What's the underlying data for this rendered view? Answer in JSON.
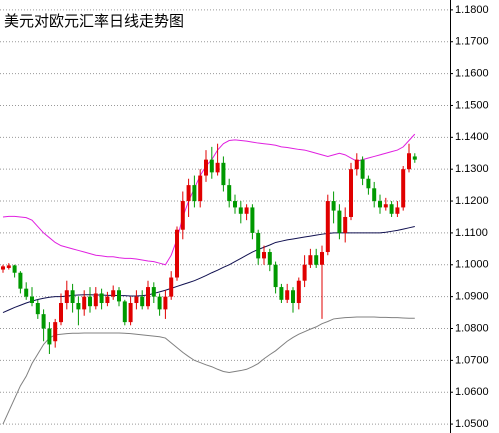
{
  "chart_data": {
    "type": "candlestick",
    "title": "美元对欧元汇率日线走势图",
    "title_color": "#e00000",
    "up_color": "#e00000",
    "down_color": "#009900",
    "grid": true,
    "ylim": [
      1.0472,
      1.1831
    ],
    "yticks": [
      {
        "value": 1.18,
        "label": "1.1800"
      },
      {
        "value": 1.17,
        "label": "1.1700"
      },
      {
        "value": 1.16,
        "label": "1.1600"
      },
      {
        "value": 1.15,
        "label": "1.1500"
      },
      {
        "value": 1.14,
        "label": "1.1400"
      },
      {
        "value": 1.13,
        "label": "1.1300"
      },
      {
        "value": 1.12,
        "label": "1.1200"
      },
      {
        "value": 1.11,
        "label": "1.1100"
      },
      {
        "value": 1.1,
        "label": "1.1000"
      },
      {
        "value": 1.09,
        "label": "1.0900"
      },
      {
        "value": 1.08,
        "label": "1.0800"
      },
      {
        "value": 1.07,
        "label": "1.0700"
      },
      {
        "value": 1.06,
        "label": "1.0600"
      },
      {
        "value": 1.05,
        "label": "1.0500"
      }
    ],
    "open": [
      1.0985,
      1.099,
      1.0998,
      1.0975,
      1.0925,
      1.09,
      1.088,
      1.0845,
      1.08,
      1.076,
      1.082,
      1.088,
      1.092,
      1.088,
      1.086,
      1.09,
      1.087,
      1.091,
      1.088,
      1.09,
      1.092,
      1.0885,
      1.082,
      1.088,
      1.09,
      1.087,
      1.093,
      1.09,
      1.086,
      1.09,
      1.096,
      1.111,
      1.12,
      1.125,
      1.12,
      1.128,
      1.133,
      1.129,
      1.132,
      1.125,
      1.12,
      1.118,
      1.116,
      1.118,
      1.11,
      1.102,
      1.104,
      1.1,
      1.093,
      1.089,
      1.092,
      1.088,
      1.095,
      1.1,
      1.103,
      1.1,
      1.104,
      1.12,
      1.117,
      1.11,
      1.115,
      1.13,
      1.133,
      1.127,
      1.124,
      1.12,
      1.118,
      1.119,
      1.116,
      1.118,
      1.13,
      1.134
    ],
    "high": [
      1.1,
      1.1005,
      1.1,
      1.098,
      1.0945,
      1.093,
      1.089,
      1.086,
      1.082,
      1.083,
      1.091,
      1.095,
      1.094,
      1.09,
      1.092,
      1.093,
      1.093,
      1.0925,
      1.0915,
      1.0935,
      1.093,
      1.089,
      1.09,
      1.092,
      1.092,
      1.095,
      1.0945,
      1.091,
      1.092,
      1.098,
      1.112,
      1.123,
      1.127,
      1.128,
      1.13,
      1.136,
      1.137,
      1.138,
      1.134,
      1.127,
      1.122,
      1.12,
      1.119,
      1.119,
      1.111,
      1.106,
      1.105,
      1.101,
      1.094,
      1.094,
      1.093,
      1.096,
      1.103,
      1.105,
      1.105,
      1.106,
      1.122,
      1.123,
      1.119,
      1.118,
      1.132,
      1.135,
      1.134,
      1.128,
      1.126,
      1.122,
      1.121,
      1.12,
      1.12,
      1.131,
      1.138,
      1.135
    ],
    "low": [
      1.0975,
      1.0985,
      1.096,
      1.091,
      1.089,
      1.087,
      1.083,
      1.076,
      1.072,
      1.074,
      1.081,
      1.086,
      1.085,
      1.081,
      1.084,
      1.085,
      1.086,
      1.086,
      1.087,
      1.089,
      1.087,
      1.081,
      1.081,
      1.086,
      1.086,
      1.086,
      1.088,
      1.084,
      1.083,
      1.089,
      1.095,
      1.108,
      1.115,
      1.118,
      1.118,
      1.126,
      1.127,
      1.128,
      1.123,
      1.118,
      1.116,
      1.113,
      1.114,
      1.108,
      1.1,
      1.1,
      1.098,
      1.091,
      1.088,
      1.088,
      1.085,
      1.086,
      1.093,
      1.099,
      1.099,
      1.083,
      1.103,
      1.113,
      1.108,
      1.107,
      1.114,
      1.128,
      1.125,
      1.122,
      1.118,
      1.116,
      1.117,
      1.115,
      1.115,
      1.117,
      1.129,
      1.132
    ],
    "close": [
      1.0995,
      1.0998,
      1.0975,
      1.0925,
      1.09,
      1.088,
      1.0845,
      1.08,
      1.075,
      1.082,
      1.088,
      1.092,
      1.088,
      1.086,
      1.09,
      1.087,
      1.091,
      1.088,
      1.09,
      1.092,
      1.0885,
      1.082,
      1.088,
      1.09,
      1.087,
      1.093,
      1.09,
      1.086,
      1.09,
      1.096,
      1.111,
      1.12,
      1.125,
      1.12,
      1.128,
      1.133,
      1.129,
      1.132,
      1.125,
      1.12,
      1.118,
      1.116,
      1.118,
      1.11,
      1.102,
      1.104,
      1.1,
      1.093,
      1.089,
      1.092,
      1.088,
      1.095,
      1.1,
      1.103,
      1.1,
      1.104,
      1.12,
      1.117,
      1.11,
      1.115,
      1.13,
      1.133,
      1.127,
      1.124,
      1.12,
      1.118,
      1.119,
      1.116,
      1.118,
      1.13,
      1.135,
      1.133
    ],
    "bands": [
      {
        "color": "#e020e0",
        "values": [
          1.115,
          1.1152,
          1.1152,
          1.115,
          1.1148,
          1.114,
          1.112,
          1.11,
          1.1085,
          1.107,
          1.106,
          1.1055,
          1.105,
          1.1045,
          1.104,
          1.1035,
          1.103,
          1.1028,
          1.1025,
          1.1025,
          1.1022,
          1.102,
          1.102,
          1.1018,
          1.1015,
          1.1012,
          1.101,
          1.1005,
          1.1,
          1.103,
          1.108,
          1.115,
          1.12,
          1.124,
          1.128,
          1.131,
          1.133,
          1.136,
          1.138,
          1.139,
          1.1392,
          1.139,
          1.1388,
          1.1385,
          1.1382,
          1.138,
          1.1378,
          1.1375,
          1.137,
          1.1368,
          1.1365,
          1.1362,
          1.136,
          1.1355,
          1.135,
          1.1345,
          1.134,
          1.1345,
          1.135,
          1.1345,
          1.1335,
          1.1325,
          1.133,
          1.1335,
          1.134,
          1.1345,
          1.135,
          1.1355,
          1.136,
          1.137,
          1.139,
          1.141
        ]
      },
      {
        "color": "#101050",
        "values": [
          1.085,
          1.0858,
          1.0866,
          1.0873,
          1.088,
          1.0886,
          1.0891,
          1.0895,
          1.0898,
          1.09,
          1.09,
          1.0902,
          1.0904,
          1.0905,
          1.0906,
          1.0906,
          1.0905,
          1.0905,
          1.0904,
          1.0904,
          1.0903,
          1.0903,
          1.0902,
          1.0902,
          1.0903,
          1.0905,
          1.091,
          1.0915,
          1.092,
          1.0926,
          1.0932,
          1.0938,
          1.0944,
          1.095,
          1.0958,
          1.0966,
          1.0975,
          1.0983,
          1.0992,
          1.1,
          1.101,
          1.102,
          1.103,
          1.104,
          1.1048,
          1.1055,
          1.1062,
          1.107,
          1.1074,
          1.1078,
          1.1081,
          1.1084,
          1.1087,
          1.109,
          1.1093,
          1.1096,
          1.1098,
          1.11,
          1.11,
          1.11,
          1.11,
          1.11,
          1.11,
          1.11,
          1.11,
          1.11,
          1.1102,
          1.1105,
          1.1108,
          1.1112,
          1.1116,
          1.112
        ]
      },
      {
        "color": "#808080",
        "values": [
          1.05,
          1.054,
          1.058,
          1.062,
          1.065,
          1.069,
          1.072,
          1.075,
          1.077,
          1.078,
          1.0782,
          1.0784,
          1.0785,
          1.0785,
          1.0786,
          1.0786,
          1.0786,
          1.0786,
          1.0786,
          1.0786,
          1.0786,
          1.0785,
          1.0784,
          1.0782,
          1.078,
          1.0778,
          1.0776,
          1.0774,
          1.077,
          1.0755,
          1.074,
          1.0725,
          1.0712,
          1.07,
          1.0693,
          1.0686,
          1.068,
          1.0672,
          1.0665,
          1.0662,
          1.0665,
          1.0668,
          1.0672,
          1.068,
          1.069,
          1.0705,
          1.0718,
          1.073,
          1.0745,
          1.076,
          1.0772,
          1.0782,
          1.079,
          1.0798,
          1.0805,
          1.0815,
          1.0822,
          1.083,
          1.0832,
          1.0834,
          1.0835,
          1.0836,
          1.0836,
          1.0836,
          1.0836,
          1.0835,
          1.0835,
          1.0834,
          1.0834,
          1.0833,
          1.0832,
          1.0832
        ]
      }
    ]
  }
}
